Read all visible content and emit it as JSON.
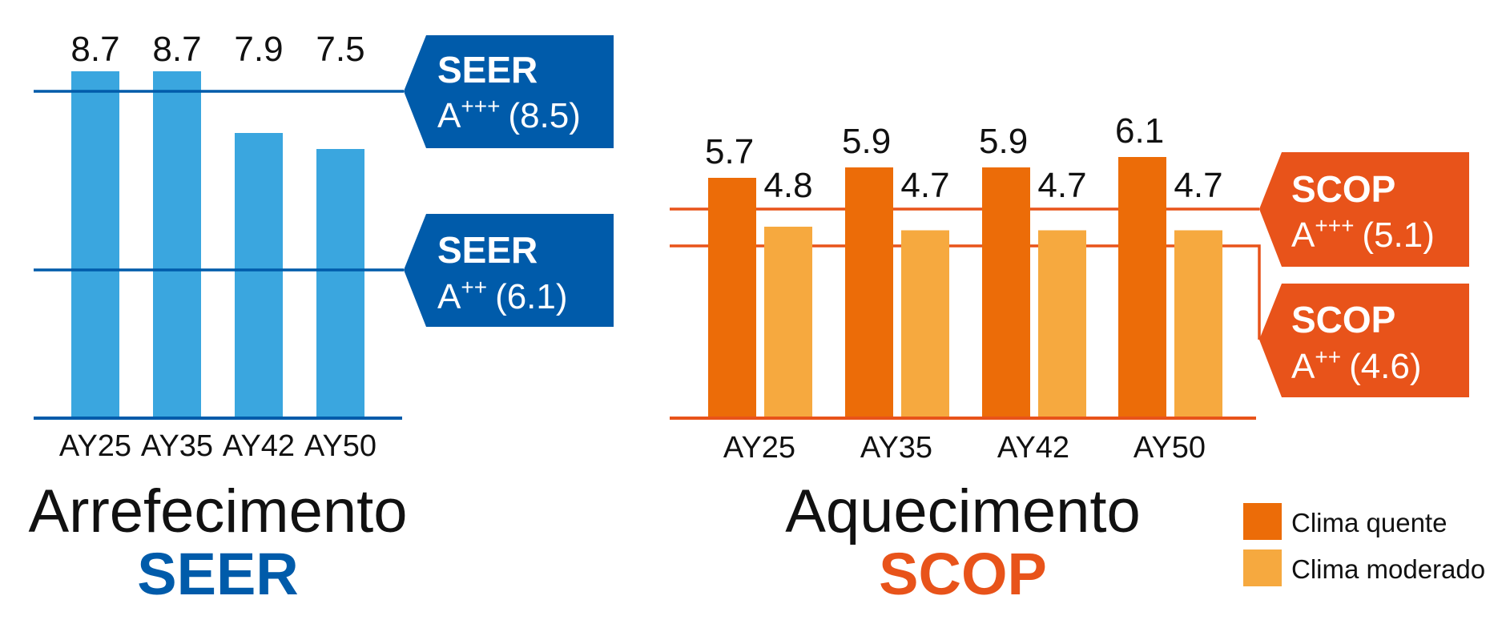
{
  "colors": {
    "blue_bar": "#3aa6df",
    "blue_dark": "#005baa",
    "orange_dark": "#ec6c08",
    "orange_light": "#f6a93f",
    "orange_line": "#e8531a",
    "orange_box": "#e8531a",
    "text": "#111111",
    "white": "#ffffff"
  },
  "chart_data": [
    {
      "type": "bar",
      "title": "Arrefecimento",
      "subtitle": "SEER",
      "categories": [
        "AY25",
        "AY35",
        "AY42",
        "AY50"
      ],
      "series": [
        {
          "values": [
            8.7,
            8.7,
            7.9,
            7.5
          ]
        }
      ],
      "data_labels": [
        "8.7",
        "8.7",
        "7.9",
        "7.5"
      ],
      "ylim": [
        4.5,
        8.7
      ],
      "reference_lines": [
        {
          "value": 8.5,
          "label_title": "SEER",
          "label_class": "A",
          "label_sup": "+++",
          "label_value": "(8.5)"
        },
        {
          "value": 6.1,
          "label_title": "SEER",
          "label_class": "A",
          "label_sup": "++",
          "label_value": "(6.1)"
        }
      ],
      "grid": false
    },
    {
      "type": "bar",
      "title": "Aquecimento",
      "subtitle": "SCOP",
      "categories": [
        "AY25",
        "AY35",
        "AY42",
        "AY50"
      ],
      "series": [
        {
          "name": "Clima quente",
          "values": [
            5.7,
            5.9,
            5.9,
            6.1
          ]
        },
        {
          "name": "Clima moderado",
          "values": [
            4.8,
            4.7,
            4.7,
            4.7
          ]
        }
      ],
      "data_labels": [
        [
          "5.7",
          "5.9",
          "5.9",
          "6.1"
        ],
        [
          "4.8",
          "4.7",
          "4.7",
          "4.7"
        ]
      ],
      "ylim": [
        0,
        6.1
      ],
      "reference_lines": [
        {
          "value": 5.1,
          "label_title": "SCOP",
          "label_class": "A",
          "label_sup": "+++",
          "label_value": "(5.1)"
        },
        {
          "value": 4.6,
          "label_title": "SCOP",
          "label_class": "A",
          "label_sup": "++",
          "label_value": "(4.6)"
        }
      ],
      "legend_position": "bottom-right",
      "grid": false
    }
  ]
}
